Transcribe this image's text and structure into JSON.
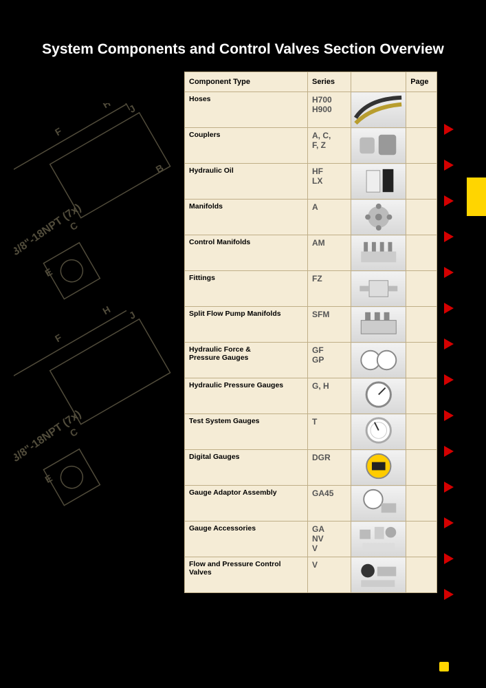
{
  "page": {
    "title": "System Components and Control Valves Section Overview",
    "bg_color": "#000000",
    "table_bg": "#f5ecd6",
    "border_color": "#bfae87",
    "arrow_color": "#d40000",
    "tab_color": "#ffd500",
    "diagram_label": "3/8\"-18NPT (7x)",
    "diagram_letters": [
      "J",
      "H",
      "F",
      "C",
      "E",
      "B"
    ]
  },
  "headers": {
    "component": "Component Type",
    "series": "Series",
    "page": "Page"
  },
  "rows": [
    {
      "label": "Hoses",
      "series": "H700\nH900",
      "thumb": "hoses"
    },
    {
      "label": "Couplers",
      "series": "A, C,\nF, Z",
      "thumb": "couplers"
    },
    {
      "label": "Hydraulic Oil",
      "series": "HF\nLX",
      "thumb": "oil"
    },
    {
      "label": "Manifolds",
      "series": "A",
      "thumb": "manifold"
    },
    {
      "label": "Control Manifolds",
      "series": "AM",
      "thumb": "controlmanifold"
    },
    {
      "label": "Fittings",
      "series": "FZ",
      "thumb": "fitting"
    },
    {
      "label": "Split Flow Pump Manifolds",
      "series": "SFM",
      "thumb": "sfm"
    },
    {
      "label": "Hydraulic Force &\nPressure Gauges",
      "series": "GF\nGP",
      "thumb": "twogauge"
    },
    {
      "label": "Hydraulic Pressure Gauges",
      "series": "G, H",
      "thumb": "gauge"
    },
    {
      "label": "Test System Gauges",
      "series": "T",
      "thumb": "gauge2"
    },
    {
      "label": "Digital Gauges",
      "series": "DGR",
      "thumb": "digital"
    },
    {
      "label": "Gauge Adaptor Assembly",
      "series": "GA45",
      "thumb": "adaptor"
    },
    {
      "label": "Gauge Accessories",
      "series": "GA\nNV\nV",
      "thumb": "accessories"
    },
    {
      "label": "Flow and Pressure Control Valves",
      "series": "V",
      "thumb": "valves"
    }
  ]
}
